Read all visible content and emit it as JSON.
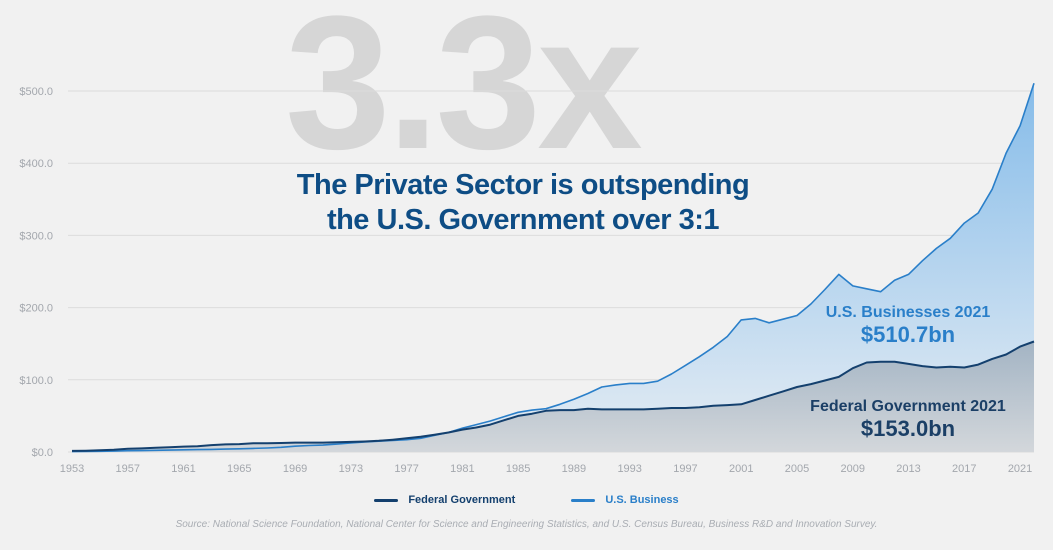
{
  "watermark": "3.3x",
  "title_line1": "The Private Sector is outspending",
  "title_line2": "the U.S. Government over 3:1",
  "annotations": {
    "business_label": "U.S. Businesses 2021",
    "business_value": "$510.7bn",
    "federal_label": "Federal Government 2021",
    "federal_value": "$153.0bn"
  },
  "legend": [
    {
      "label": "Federal Government",
      "color": "#14406e"
    },
    {
      "label": "U.S. Business",
      "color": "#2a7fc9"
    }
  ],
  "source": "Source: National Science Foundation, National Center for Science and Engineering Statistics, and U.S. Census Bureau, Business R&D and Innovation Survey.",
  "chart_data": {
    "type": "area",
    "xlim": [
      1953,
      2022
    ],
    "ylim": [
      0,
      500
    ],
    "grid": true,
    "legend_position": "bottom",
    "y_ticks": [
      0,
      100,
      200,
      300,
      400,
      500
    ],
    "y_tick_labels": [
      "$0.0",
      "$100.0",
      "$200.0",
      "$300.0",
      "$400.0",
      "$500.0"
    ],
    "x_tick_labels": [
      "1953",
      "1957",
      "1961",
      "1965",
      "1969",
      "1973",
      "1977",
      "1981",
      "1985",
      "1989",
      "1993",
      "1997",
      "2001",
      "2005",
      "2009",
      "2013",
      "2017",
      "2021"
    ],
    "x_start": 1953,
    "series": [
      {
        "name": "U.S. Business",
        "color": "#2a7fc9",
        "values": [
          0.5,
          0.7,
          1,
          1.2,
          1.8,
          2,
          2.3,
          2.6,
          3,
          3.3,
          3.6,
          4,
          4.5,
          5,
          5.5,
          6.5,
          8,
          9,
          9.5,
          11,
          12.5,
          14,
          15,
          16,
          17,
          19,
          23,
          27,
          33,
          38,
          43,
          49,
          55,
          58,
          60,
          66,
          73,
          81,
          90,
          93,
          95,
          95,
          98,
          108,
          120,
          132,
          145,
          160,
          183,
          185,
          179,
          184,
          189,
          205,
          225,
          246,
          230,
          226,
          222,
          238,
          246,
          265,
          282,
          296,
          317,
          331,
          364,
          414,
          452,
          510.7
        ]
      },
      {
        "name": "Federal Government",
        "color": "#14406e",
        "values": [
          1.5,
          1.8,
          2.5,
          3,
          4.5,
          5,
          6,
          6.5,
          7.5,
          8,
          9.5,
          10.5,
          11,
          12,
          12,
          12.5,
          13,
          13,
          13,
          13.5,
          14,
          14.5,
          15.5,
          17,
          19,
          21,
          24,
          27,
          31,
          34,
          38,
          44,
          50,
          53,
          57,
          58,
          58,
          60,
          59,
          59,
          59,
          59,
          60,
          61,
          61,
          62,
          64,
          65,
          66,
          72,
          78,
          84,
          90,
          94,
          99,
          104,
          116,
          124,
          125,
          125,
          122,
          119,
          117,
          118,
          117,
          121,
          129,
          135,
          146,
          153
        ]
      }
    ]
  }
}
